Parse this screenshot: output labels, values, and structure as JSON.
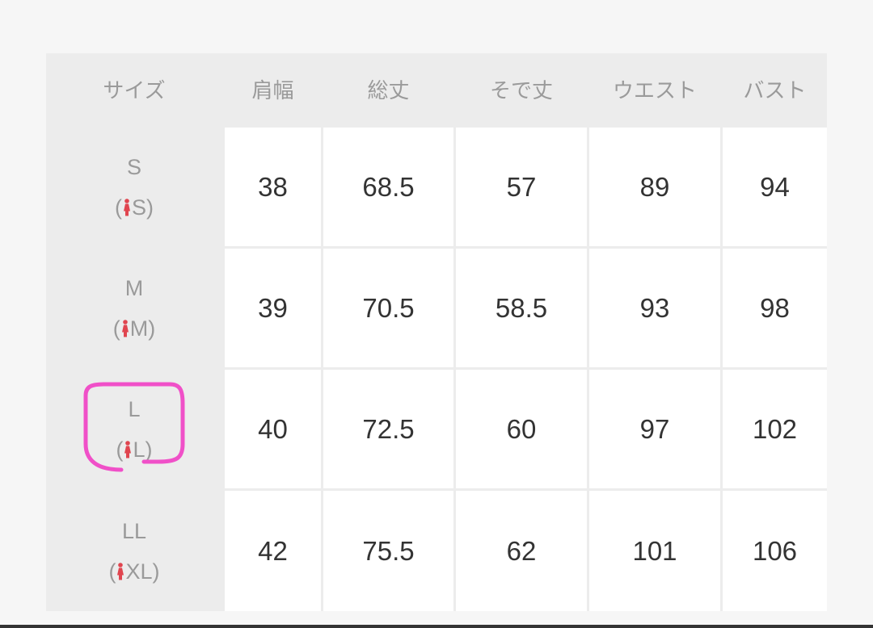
{
  "headers": [
    "サイズ",
    "肩幅",
    "総丈",
    "そで丈",
    "ウエスト",
    "バスト"
  ],
  "rows": [
    {
      "size": "S",
      "women_size": "S",
      "values": [
        "38",
        "68.5",
        "57",
        "89",
        "94"
      ]
    },
    {
      "size": "M",
      "women_size": "M",
      "values": [
        "39",
        "70.5",
        "58.5",
        "93",
        "98"
      ]
    },
    {
      "size": "L",
      "women_size": "L",
      "values": [
        "40",
        "72.5",
        "60",
        "97",
        "102"
      ],
      "highlighted": true
    },
    {
      "size": "LL",
      "women_size": "XL",
      "values": [
        "42",
        "75.5",
        "62",
        "101",
        "106"
      ]
    }
  ],
  "colors": {
    "header_bg": "#ececec",
    "cell_bg": "#ffffff",
    "women_icon": "#e0454f",
    "highlight": "#f050c8"
  },
  "icons": {
    "women": "woman-icon"
  }
}
